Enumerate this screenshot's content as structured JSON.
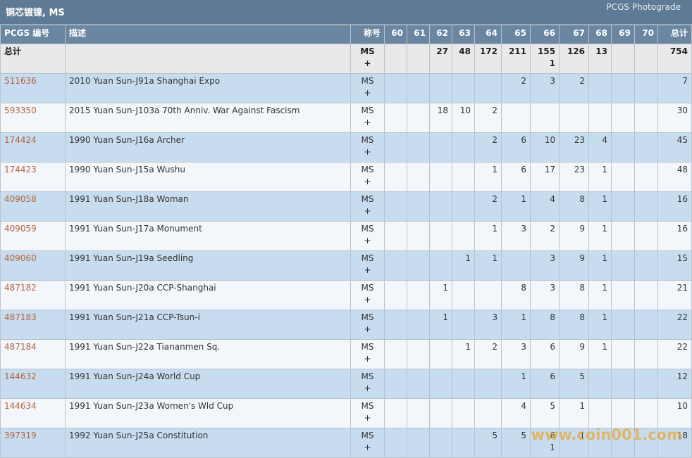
{
  "header": {
    "title": "铜芯镀镍, MS",
    "link": "PCGS Photograde"
  },
  "table": {
    "columns": [
      "PCGS 编号",
      "描述",
      "称号",
      "60",
      "61",
      "62",
      "63",
      "64",
      "65",
      "66",
      "67",
      "68",
      "69",
      "70",
      "总计"
    ],
    "total_row": [
      "总计",
      null,
      "MS\n+",
      null,
      null,
      27,
      48,
      172,
      211,
      "155\n1",
      126,
      13,
      null,
      null,
      754
    ],
    "rows": [
      [
        "511636",
        "2010 Yuan Sun-J91a Shanghai Expo",
        "MS\n+",
        null,
        null,
        null,
        null,
        null,
        2,
        3,
        2,
        null,
        null,
        null,
        7
      ],
      [
        "593350",
        "2015 Yuan Sun-J103a 70th Anniv. War Against Fascism",
        "MS\n+",
        null,
        null,
        18,
        10,
        2,
        null,
        null,
        null,
        null,
        null,
        null,
        30
      ],
      [
        "174424",
        "1990 Yuan Sun-J16a Archer",
        "MS\n+",
        null,
        null,
        null,
        null,
        2,
        6,
        10,
        23,
        4,
        null,
        null,
        45
      ],
      [
        "174423",
        "1990 Yuan Sun-J15a Wushu",
        "MS\n+",
        null,
        null,
        null,
        null,
        1,
        6,
        17,
        23,
        1,
        null,
        null,
        48
      ],
      [
        "409058",
        "1991 Yuan Sun-J18a Woman",
        "MS\n+",
        null,
        null,
        null,
        null,
        2,
        1,
        4,
        8,
        1,
        null,
        null,
        16
      ],
      [
        "409059",
        "1991 Yuan Sun-J17a Monument",
        "MS\n+",
        null,
        null,
        null,
        null,
        1,
        3,
        2,
        9,
        1,
        null,
        null,
        16
      ],
      [
        "409060",
        "1991 Yuan Sun-J19a Seedling",
        "MS\n+",
        null,
        null,
        null,
        1,
        1,
        null,
        3,
        9,
        1,
        null,
        null,
        15
      ],
      [
        "487182",
        "1991 Yuan Sun-J20a CCP-Shanghai",
        "MS\n+",
        null,
        null,
        1,
        null,
        null,
        8,
        3,
        8,
        1,
        null,
        null,
        21
      ],
      [
        "487183",
        "1991 Yuan Sun-J21a CCP-Tsun-i",
        "MS\n+",
        null,
        null,
        1,
        null,
        3,
        1,
        8,
        8,
        1,
        null,
        null,
        22
      ],
      [
        "487184",
        "1991 Yuan Sun-J22a Tiananmen Sq.",
        "MS\n+",
        null,
        null,
        null,
        1,
        2,
        3,
        6,
        9,
        1,
        null,
        null,
        22
      ],
      [
        "144632",
        "1991 Yuan Sun-J24a World Cup",
        "MS\n+",
        null,
        null,
        null,
        null,
        null,
        1,
        6,
        5,
        null,
        null,
        null,
        12
      ],
      [
        "144634",
        "1991 Yuan Sun-J23a Women's Wld Cup",
        "MS\n+",
        null,
        null,
        null,
        null,
        null,
        4,
        5,
        1,
        null,
        null,
        null,
        10
      ],
      [
        "397319",
        "1992 Yuan Sun-J25a Constitution",
        "MS\n+",
        null,
        null,
        null,
        null,
        5,
        5,
        "6\n1",
        1,
        null,
        null,
        null,
        18
      ]
    ]
  },
  "watermark": "www.coin001.com"
}
